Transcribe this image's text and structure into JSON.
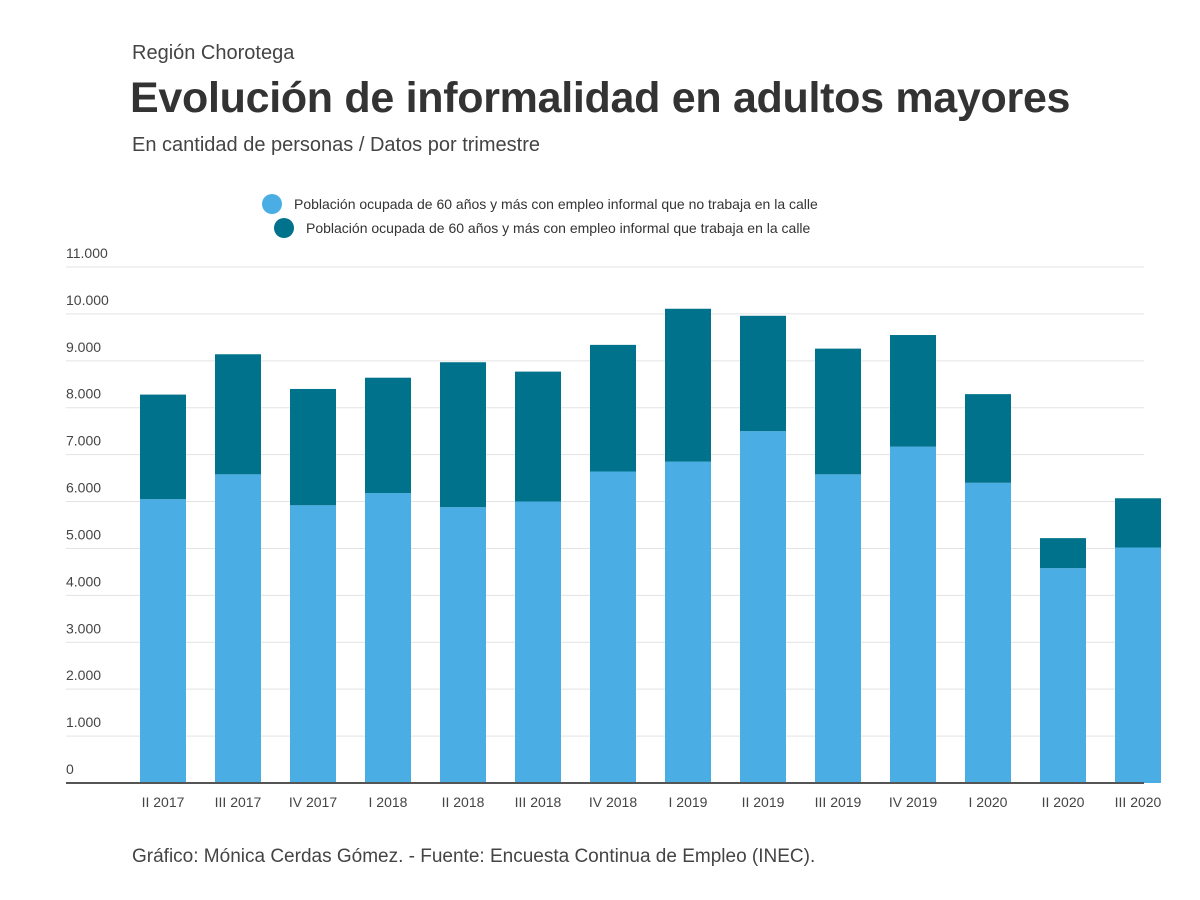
{
  "header": {
    "kicker": "Región Chorotega",
    "title": "Evolución de informalidad en adultos mayores",
    "subtitle": "En cantidad de personas / Datos por trimestre"
  },
  "legend": {
    "items": [
      {
        "label": "Población ocupada de 60 años y más con empleo informal que no trabaja en la calle",
        "color": "#4aaee5"
      },
      {
        "label": "Población ocupada de 60 años y más con empleo informal que trabaja en la calle",
        "color": "#00728c"
      }
    ]
  },
  "chart_data": {
    "type": "bar",
    "stacked": true,
    "categories": [
      "II 2017",
      "III 2017",
      "IV 2017",
      "I 2018",
      "II 2018",
      "III 2018",
      "IV 2018",
      "I 2019",
      "II 2019",
      "III 2019",
      "IV 2019",
      "I 2020",
      "II 2020",
      "III 2020"
    ],
    "series": [
      {
        "name": "Población ocupada de 60 años y más con empleo informal que no trabaja en la calle",
        "color": "#4aaee5",
        "values": [
          6050,
          6580,
          5920,
          6180,
          5880,
          6000,
          6640,
          6850,
          7500,
          6580,
          7170,
          6400,
          4580,
          5020
        ]
      },
      {
        "name": "Población ocupada de 60 años y más con empleo informal que trabaja en la calle",
        "color": "#00728c",
        "values": [
          2230,
          2560,
          2480,
          2460,
          3090,
          2770,
          2700,
          3260,
          2460,
          2680,
          2380,
          1890,
          640,
          1050
        ]
      }
    ],
    "ylim": [
      0,
      11000
    ],
    "yticks": [
      0,
      1000,
      2000,
      3000,
      4000,
      5000,
      6000,
      7000,
      8000,
      9000,
      10000,
      11000
    ],
    "ytick_labels": [
      "0",
      "1.000",
      "2.000",
      "3.000",
      "4.000",
      "5.000",
      "6.000",
      "7.000",
      "8.000",
      "9.000",
      "10.000",
      "11.000"
    ],
    "grid": true,
    "legend_position": "top"
  },
  "footer": {
    "credit": "Gráfico: Mónica Cerdas Gómez. - Fuente: Encuesta Continua de Empleo (INEC)."
  }
}
